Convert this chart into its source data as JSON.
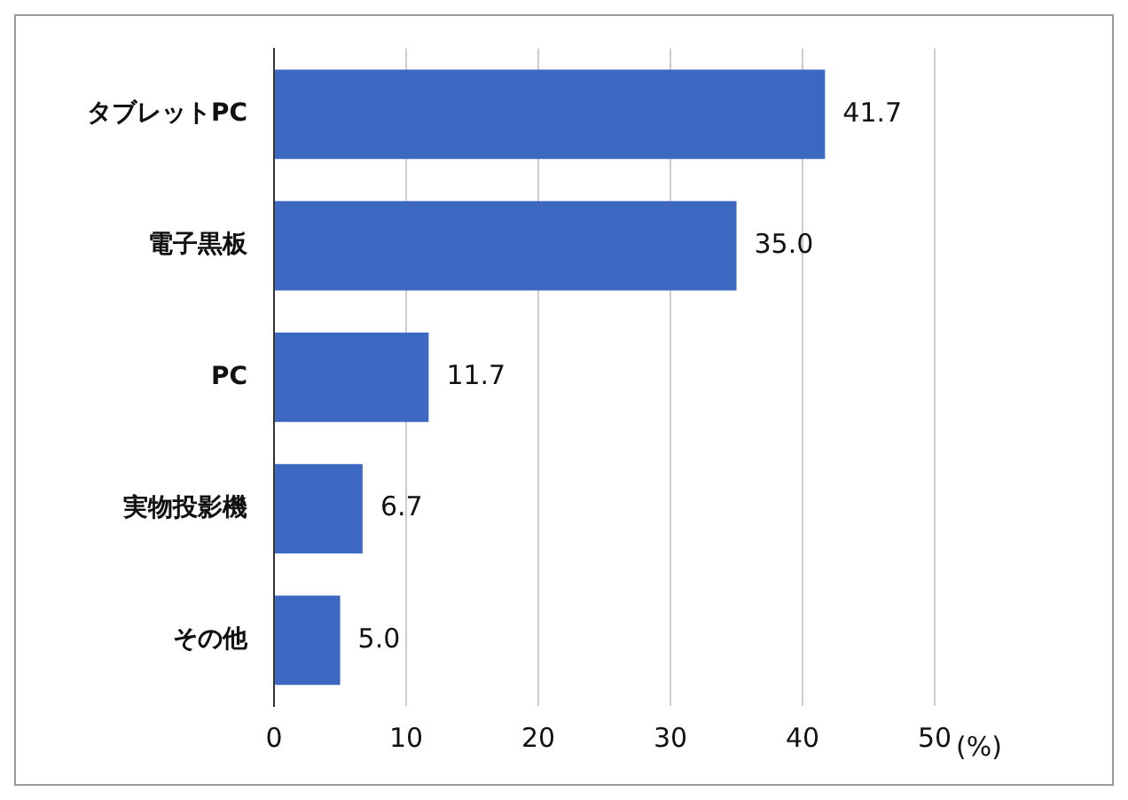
{
  "chart_data": {
    "type": "bar",
    "orientation": "horizontal",
    "xlabel": "(%)",
    "categories": [
      "タブレットPC",
      "電子黒板",
      "PC",
      "実物投影機",
      "その他"
    ],
    "values": [
      41.7,
      35.0,
      11.7,
      6.7,
      5.0
    ],
    "value_labels": [
      "41.7",
      "35.0",
      "11.7",
      "6.7",
      "5.0"
    ],
    "color": "#3d68c2",
    "xlim": [
      0,
      50
    ],
    "xticks": [
      0,
      10,
      20,
      30,
      40,
      50
    ],
    "grid": "x"
  }
}
